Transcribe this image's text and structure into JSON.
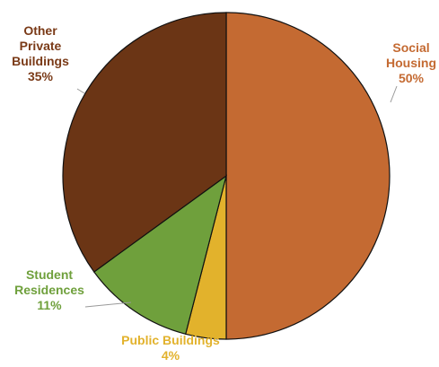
{
  "chart_data": {
    "type": "pie",
    "title": "",
    "slices": [
      {
        "label": "Social Housing",
        "label_lines": [
          "Social",
          "Housing"
        ],
        "value": 50,
        "value_label": "50%",
        "color": "#C46A32"
      },
      {
        "label": "Public Buildings",
        "label_lines": [
          "Public Buildings"
        ],
        "value": 4,
        "value_label": "4%",
        "color": "#E2B22C"
      },
      {
        "label": "Student Residences",
        "label_lines": [
          "Student",
          "Residences"
        ],
        "value": 11,
        "value_label": "11%",
        "color": "#6FA03C"
      },
      {
        "label": "Other Private Buildings",
        "label_lines": [
          "Other",
          "Private",
          "Buildings"
        ],
        "value": 35,
        "value_label": "35%",
        "color": "#6B3515"
      }
    ],
    "label_colors": {
      "Social Housing": "#C46A32",
      "Public Buildings": "#E2B22C",
      "Student Residences": "#6FA03C",
      "Other Private Buildings": "#7A3A17"
    },
    "start_angle_degrees": 0,
    "direction": "clockwise",
    "legend": "none"
  }
}
